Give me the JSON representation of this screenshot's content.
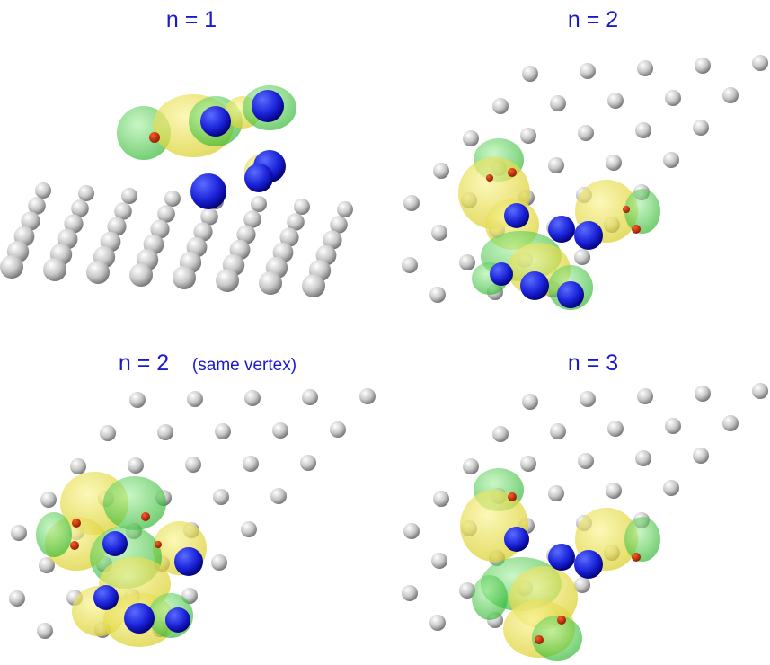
{
  "panels": [
    {
      "title": "n = 1"
    },
    {
      "title": "n = 2"
    },
    {
      "title": "n = 2",
      "note": "(same vertex)"
    },
    {
      "title": "n = 3"
    }
  ]
}
